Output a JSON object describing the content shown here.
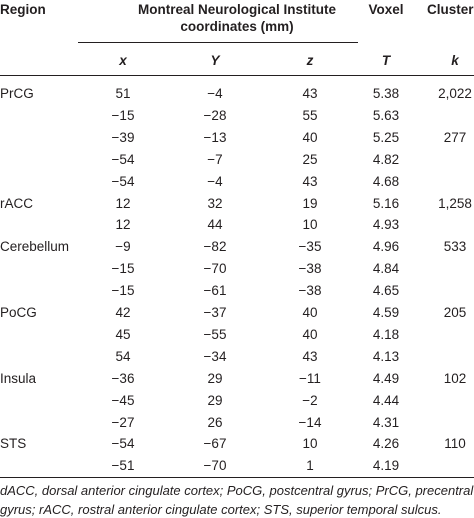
{
  "header": {
    "region": "Region",
    "mni_line1": "Montreal Neurological Institute",
    "mni_line2": "coordinates (mm)",
    "voxel": "Voxel",
    "cluster": "Cluster",
    "x": "x",
    "y": "Y",
    "z": "z",
    "t": "T",
    "k": "k"
  },
  "rows": [
    {
      "region": "PrCG",
      "x": "51",
      "y": "−4",
      "z": "43",
      "t": "5.38",
      "k": "2,022"
    },
    {
      "region": "",
      "x": "−15",
      "y": "−28",
      "z": "55",
      "t": "5.63",
      "k": ""
    },
    {
      "region": "",
      "x": "−39",
      "y": "−13",
      "z": "40",
      "t": "5.25",
      "k": "277"
    },
    {
      "region": "",
      "x": "−54",
      "y": "−7",
      "z": "25",
      "t": "4.82",
      "k": ""
    },
    {
      "region": "",
      "x": "−54",
      "y": "−4",
      "z": "43",
      "t": "4.68",
      "k": ""
    },
    {
      "region": "rACC",
      "x": "12",
      "y": "32",
      "z": "19",
      "t": "5.16",
      "k": "1,258"
    },
    {
      "region": "",
      "x": "12",
      "y": "44",
      "z": "10",
      "t": "4.93",
      "k": ""
    },
    {
      "region": "Cerebellum",
      "x": "−9",
      "y": "−82",
      "z": "−35",
      "t": "4.96",
      "k": "533"
    },
    {
      "region": "",
      "x": "−15",
      "y": "−70",
      "z": "−38",
      "t": "4.84",
      "k": ""
    },
    {
      "region": "",
      "x": "−15",
      "y": "−61",
      "z": "−38",
      "t": "4.65",
      "k": ""
    },
    {
      "region": "PoCG",
      "x": "42",
      "y": "−37",
      "z": "40",
      "t": "4.59",
      "k": "205"
    },
    {
      "region": "",
      "x": "45",
      "y": "−55",
      "z": "40",
      "t": "4.18",
      "k": ""
    },
    {
      "region": "",
      "x": "54",
      "y": "−34",
      "z": "43",
      "t": "4.13",
      "k": ""
    },
    {
      "region": "Insula",
      "x": "−36",
      "y": "29",
      "z": "−11",
      "t": "4.49",
      "k": "102"
    },
    {
      "region": "",
      "x": "−45",
      "y": "29",
      "z": "−2",
      "t": "4.44",
      "k": ""
    },
    {
      "region": "",
      "x": "−27",
      "y": "26",
      "z": "−14",
      "t": "4.31",
      "k": ""
    },
    {
      "region": "STS",
      "x": "−54",
      "y": "−67",
      "z": "10",
      "t": "4.26",
      "k": "110"
    },
    {
      "region": "",
      "x": "−51",
      "y": "−70",
      "z": "1",
      "t": "4.19",
      "k": ""
    }
  ],
  "footnote": {
    "line1": "dACC, dorsal anterior cingulate cortex; PoCG, postcentral gyrus; PrCG, precentral",
    "line2": "gyrus; rACC, rostral anterior cingulate cortex; STS, superior temporal sulcus."
  }
}
